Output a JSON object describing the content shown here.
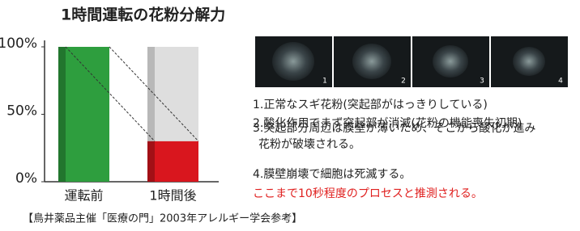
{
  "chart_data": {
    "type": "bar",
    "title": "1時間運転の花粉分解力",
    "categories": [
      "運転前",
      "1時間後"
    ],
    "values": [
      100,
      30
    ],
    "colors": [
      "#2e9e3e",
      "#d9161e"
    ],
    "ylim": [
      0,
      100
    ],
    "yticks": [
      {
        "value": 0,
        "label": "0%"
      },
      {
        "value": 50,
        "label": "50%"
      },
      {
        "value": 100,
        "label": "100%"
      }
    ]
  },
  "photos": {
    "labels": [
      "1",
      "2",
      "3",
      "4"
    ]
  },
  "notes": [
    "1.正常なスギ花粉(突起部がはっきりしている)",
    "2.酸化作用でまず突起部が消滅(花粉の機能喪失初期)",
    "3.突起部分周辺は膜壁が薄いため、そこから酸化が進み",
    "花粉が破壊される。",
    "4.膜壁崩壊で細胞は死滅する。"
  ],
  "conclusion": "ここまで10秒程度のプロセスと推測される。",
  "source": "【鳥井薬品主催「医療の門」2003年アレルギー学会参考】"
}
